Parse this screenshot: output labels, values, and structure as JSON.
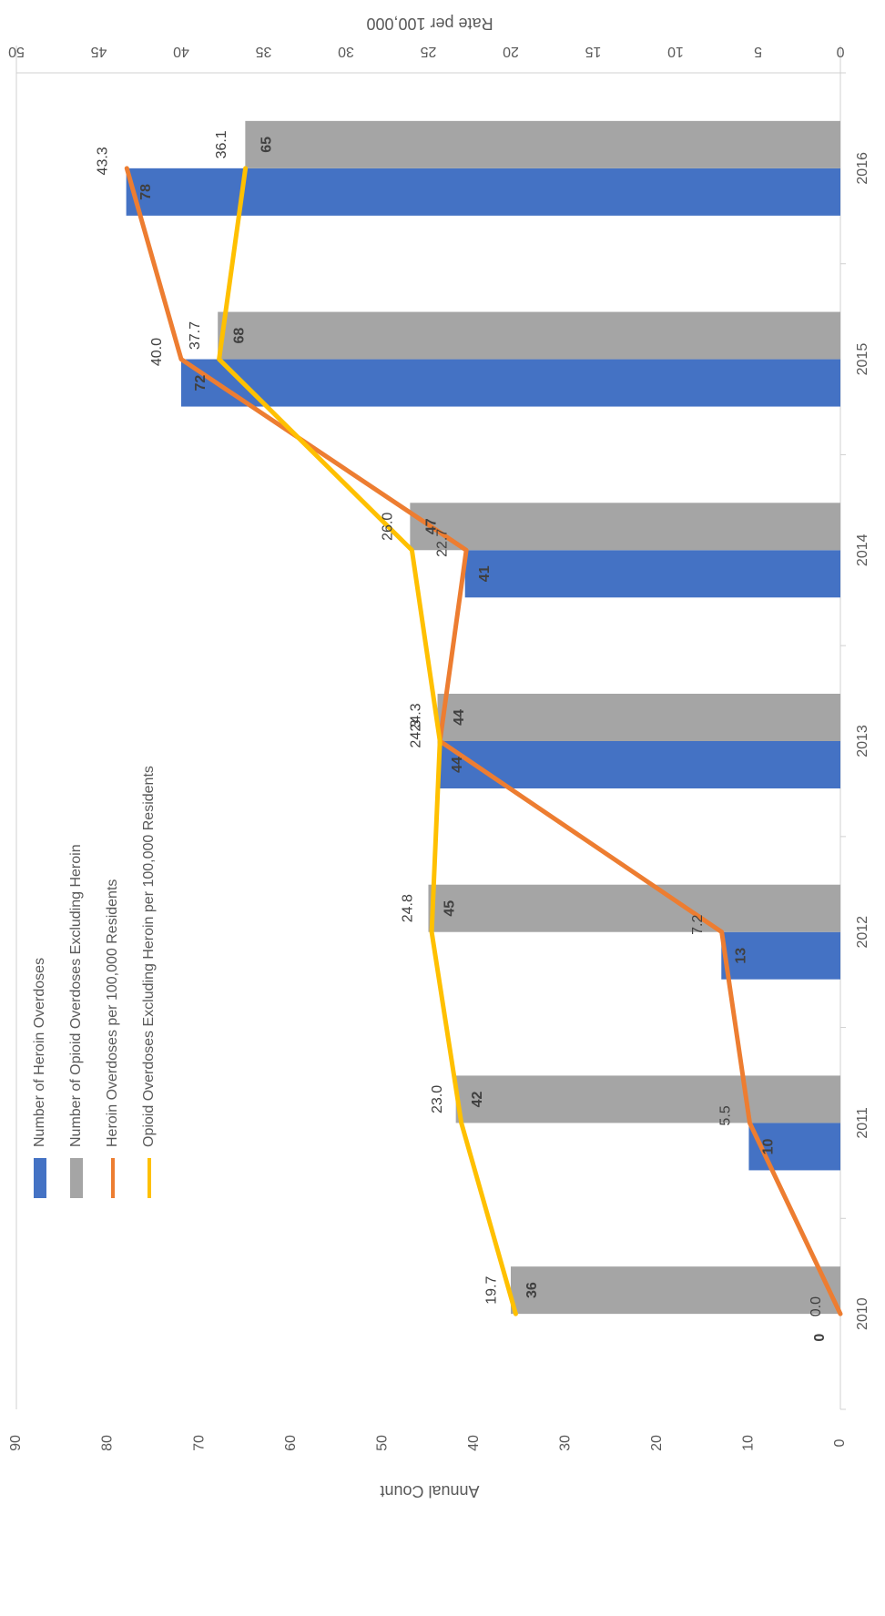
{
  "chart_data": {
    "type": "bar",
    "orientation": "rotated-90-clockwise",
    "categories": [
      "2010",
      "2011",
      "2012",
      "2013",
      "2014",
      "2015",
      "2016"
    ],
    "series": [
      {
        "name": "Number of Heroin Overdoses",
        "kind": "bar",
        "axis": "count",
        "color": "#4472C4",
        "values": [
          0,
          10,
          13,
          44,
          41,
          72,
          78
        ]
      },
      {
        "name": "Number of Opioid Overdoses Excluding Heroin",
        "kind": "bar",
        "axis": "count",
        "color": "#A5A5A5",
        "values": [
          36,
          42,
          45,
          44,
          47,
          68,
          65
        ]
      },
      {
        "name": "Heroin Overdoses per 100,000 Residents",
        "kind": "line",
        "axis": "rate",
        "color": "#ED7D31",
        "values": [
          0.0,
          5.5,
          7.2,
          24.3,
          22.7,
          40.0,
          43.3
        ]
      },
      {
        "name": "Opioid Overdoses Excluding Heroin per 100,000 Residents",
        "kind": "line",
        "axis": "rate",
        "color": "#FFC000",
        "values": [
          19.7,
          23.0,
          24.8,
          24.3,
          26.0,
          37.7,
          36.1
        ]
      }
    ],
    "count_axis": {
      "label": "Annual Count",
      "range": [
        0,
        90
      ],
      "ticks": [
        "0",
        "10",
        "20",
        "30",
        "40",
        "50",
        "60",
        "70",
        "80",
        "90"
      ]
    },
    "rate_axis": {
      "label": "Rate per 100,000",
      "range": [
        0,
        50
      ],
      "ticks": [
        "0",
        "5",
        "10",
        "15",
        "20",
        "25",
        "30",
        "35",
        "40",
        "45",
        "50"
      ]
    },
    "labels": {
      "heroin_counts": [
        "0",
        "10",
        "13",
        "44",
        "41",
        "72",
        "78"
      ],
      "opioid_counts": [
        "36",
        "42",
        "45",
        "44",
        "47",
        "68",
        "65"
      ],
      "heroin_rates": [
        "0.0",
        "5.5",
        "7.2",
        "24.3",
        "22.7",
        "40.0",
        "43.3"
      ],
      "opioid_rates": [
        "19.7",
        "23.0",
        "24.8",
        "24.3",
        "26.0",
        "37.7",
        "36.1"
      ]
    },
    "legend": {
      "position": "top-left"
    },
    "grid": false
  }
}
